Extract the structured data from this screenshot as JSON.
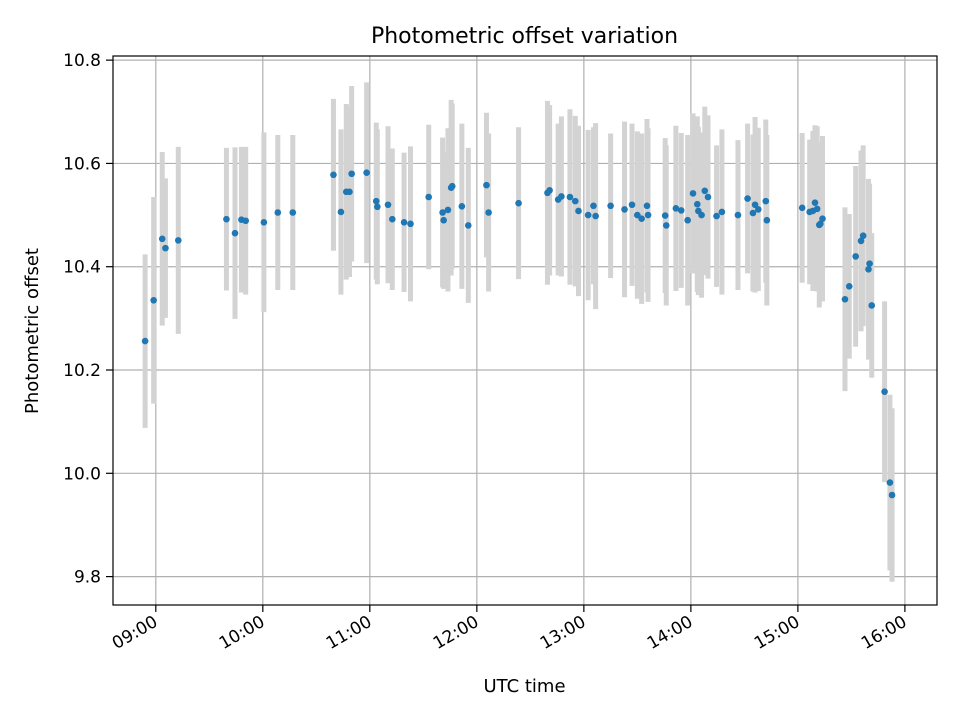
{
  "chart_data": {
    "type": "scatter",
    "title": "Photometric offset variation",
    "xlabel": "UTC time",
    "ylabel": "Photometric offset",
    "x_unit": "hours (UTC)",
    "xlim": [
      8.6,
      16.3
    ],
    "ylim": [
      9.745,
      10.808
    ],
    "x_ticks": [
      9,
      10,
      11,
      12,
      13,
      14,
      15,
      16
    ],
    "x_tick_labels": [
      "09:00",
      "10:00",
      "11:00",
      "12:00",
      "13:00",
      "14:00",
      "15:00",
      "16:00"
    ],
    "y_ticks": [
      9.8,
      10.0,
      10.2,
      10.4,
      10.6,
      10.8
    ],
    "y_tick_labels": [
      "9.8",
      "10.0",
      "10.2",
      "10.4",
      "10.6",
      "10.8"
    ],
    "grid": true,
    "colors": {
      "points": "#1f77b4",
      "errorbars": "#d3d3d3",
      "grid": "#b0b0b0"
    },
    "points": [
      [
        8.9,
        10.256,
        0.168
      ],
      [
        8.98,
        10.335,
        0.2
      ],
      [
        9.06,
        10.454,
        0.168
      ],
      [
        9.09,
        10.436,
        0.135
      ],
      [
        9.21,
        10.451,
        0.181
      ],
      [
        9.66,
        10.492,
        0.138
      ],
      [
        9.74,
        10.465,
        0.166
      ],
      [
        9.8,
        10.491,
        0.141
      ],
      [
        9.84,
        10.489,
        0.143
      ],
      [
        10.01,
        10.486,
        0.174
      ],
      [
        10.14,
        10.505,
        0.15
      ],
      [
        10.28,
        10.505,
        0.15
      ],
      [
        10.66,
        10.578,
        0.147
      ],
      [
        10.73,
        10.506,
        0.16
      ],
      [
        10.78,
        10.545,
        0.17
      ],
      [
        10.81,
        10.545,
        0.165
      ],
      [
        10.83,
        10.58,
        0.17
      ],
      [
        10.97,
        10.582,
        0.175
      ],
      [
        11.06,
        10.527,
        0.152
      ],
      [
        11.07,
        10.516,
        0.15
      ],
      [
        11.17,
        10.52,
        0.152
      ],
      [
        11.21,
        10.492,
        0.137
      ],
      [
        11.32,
        10.486,
        0.135
      ],
      [
        11.38,
        10.483,
        0.15
      ],
      [
        11.55,
        10.535,
        0.14
      ],
      [
        11.68,
        10.505,
        0.145
      ],
      [
        11.69,
        10.49,
        0.133
      ],
      [
        11.73,
        10.51,
        0.158
      ],
      [
        11.76,
        10.553,
        0.17
      ],
      [
        11.77,
        10.556,
        0.16
      ],
      [
        11.86,
        10.517,
        0.16
      ],
      [
        11.92,
        10.48,
        0.15
      ],
      [
        12.09,
        10.558,
        0.14
      ],
      [
        12.11,
        10.505,
        0.153
      ],
      [
        12.39,
        10.523,
        0.147
      ],
      [
        12.66,
        10.543,
        0.178
      ],
      [
        12.68,
        10.548,
        0.165
      ],
      [
        12.76,
        10.53,
        0.147
      ],
      [
        12.79,
        10.536,
        0.155
      ],
      [
        12.87,
        10.535,
        0.17
      ],
      [
        12.92,
        10.527,
        0.165
      ],
      [
        12.95,
        10.508,
        0.165
      ],
      [
        13.04,
        10.5,
        0.165
      ],
      [
        13.09,
        10.518,
        0.152
      ],
      [
        13.11,
        10.498,
        0.18
      ],
      [
        13.25,
        10.518,
        0.14
      ],
      [
        13.38,
        10.511,
        0.17
      ],
      [
        13.45,
        10.52,
        0.157
      ],
      [
        13.5,
        10.5,
        0.162
      ],
      [
        13.54,
        10.493,
        0.165
      ],
      [
        13.59,
        10.518,
        0.168
      ],
      [
        13.6,
        10.5,
        0.168
      ],
      [
        13.76,
        10.499,
        0.15
      ],
      [
        13.77,
        10.48,
        0.155
      ],
      [
        13.86,
        10.513,
        0.16
      ],
      [
        13.91,
        10.509,
        0.15
      ],
      [
        13.97,
        10.49,
        0.165
      ],
      [
        14.02,
        10.542,
        0.155
      ],
      [
        14.06,
        10.521,
        0.17
      ],
      [
        14.07,
        10.508,
        0.163
      ],
      [
        14.1,
        10.5,
        0.16
      ],
      [
        14.13,
        10.547,
        0.163
      ],
      [
        14.16,
        10.535,
        0.158
      ],
      [
        14.24,
        10.498,
        0.137
      ],
      [
        14.29,
        10.506,
        0.16
      ],
      [
        14.44,
        10.5,
        0.145
      ],
      [
        14.53,
        10.532,
        0.145
      ],
      [
        14.58,
        10.504,
        0.152
      ],
      [
        14.6,
        10.52,
        0.17
      ],
      [
        14.63,
        10.511,
        0.158
      ],
      [
        14.7,
        10.527,
        0.158
      ],
      [
        14.71,
        10.49,
        0.165
      ],
      [
        15.04,
        10.514,
        0.145
      ],
      [
        15.11,
        10.506,
        0.14
      ],
      [
        15.14,
        10.508,
        0.155
      ],
      [
        15.16,
        10.524,
        0.15
      ],
      [
        15.18,
        10.512,
        0.16
      ],
      [
        15.2,
        10.481,
        0.16
      ],
      [
        15.21,
        10.483,
        0.15
      ],
      [
        15.23,
        10.493,
        0.16
      ],
      [
        15.44,
        10.337,
        0.178
      ],
      [
        15.48,
        10.362,
        0.14
      ],
      [
        15.54,
        10.42,
        0.175
      ],
      [
        15.59,
        10.45,
        0.175
      ],
      [
        15.61,
        10.46,
        0.175
      ],
      [
        15.66,
        10.395,
        0.175
      ],
      [
        15.67,
        10.406,
        0.155
      ],
      [
        15.69,
        10.325,
        0.14
      ],
      [
        15.81,
        10.158,
        0.175
      ],
      [
        15.86,
        9.982,
        0.17
      ],
      [
        15.88,
        9.958,
        0.168
      ]
    ]
  }
}
